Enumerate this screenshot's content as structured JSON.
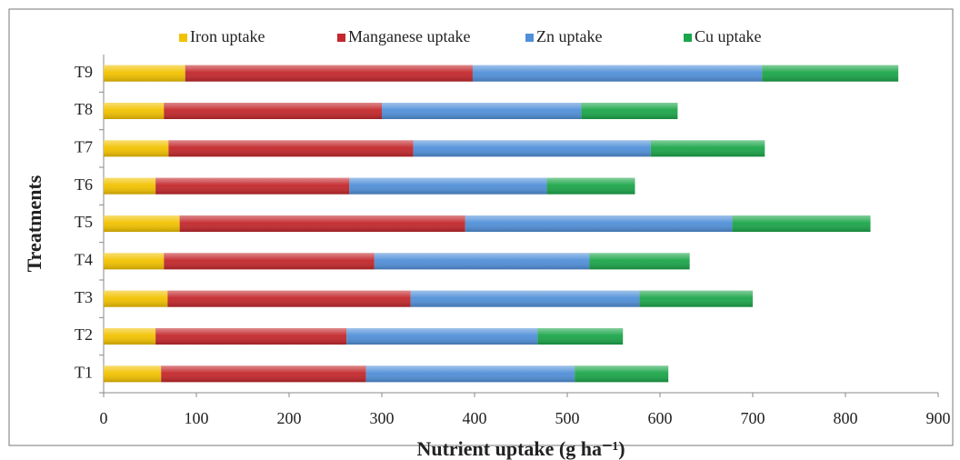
{
  "chart_data": {
    "type": "stacked-bar-horizontal",
    "x_label": "Nutrient uptake (g ha⁻¹)",
    "y_label": "Treatments",
    "categories": [
      "T1",
      "T2",
      "T3",
      "T4",
      "T5",
      "T6",
      "T7",
      "T8",
      "T9"
    ],
    "series": [
      {
        "name": "Iron uptake",
        "color": "#f2c200",
        "values": [
          62,
          56,
          69,
          65,
          82,
          56,
          70,
          65,
          88
        ]
      },
      {
        "name": "Manganese uptake",
        "color": "#c3282c",
        "values": [
          221,
          206,
          262,
          227,
          308,
          209,
          264,
          235,
          310
        ]
      },
      {
        "name": "Zn uptake",
        "color": "#5190d9",
        "values": [
          225,
          206,
          247,
          232,
          288,
          213,
          256,
          215,
          312
        ]
      },
      {
        "name": "Cu uptake",
        "color": "#1ca64a",
        "values": [
          101,
          92,
          122,
          108,
          149,
          95,
          123,
          104,
          147
        ]
      }
    ],
    "xlim": [
      0,
      900
    ],
    "xticks": [
      0,
      100,
      200,
      300,
      400,
      500,
      600,
      700,
      800,
      900
    ],
    "legend": "top"
  }
}
